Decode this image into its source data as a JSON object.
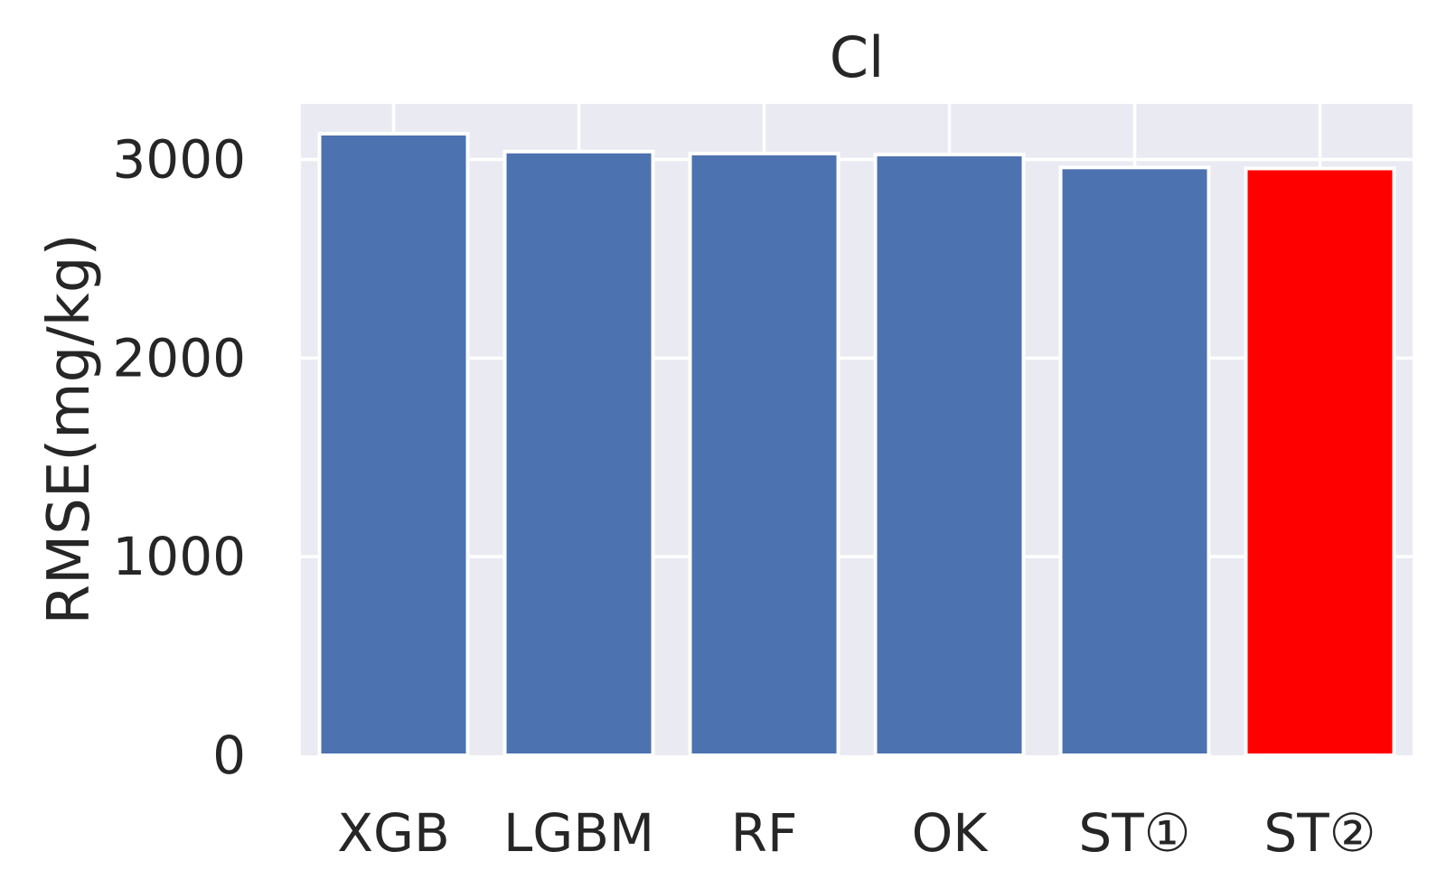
{
  "chart_data": {
    "type": "bar",
    "title": "Cl",
    "xlabel": "",
    "ylabel": "RMSE(mg/kg)",
    "categories": [
      "XGB",
      "LGBM",
      "RF",
      "OK",
      "ST①",
      "ST②"
    ],
    "values": [
      3130,
      3040,
      3030,
      3025,
      2960,
      2955
    ],
    "bar_colors": [
      "#4c72b0",
      "#4c72b0",
      "#4c72b0",
      "#4c72b0",
      "#4c72b0",
      "#ff0000"
    ],
    "ylim": [
      0,
      3280
    ],
    "yticks": [
      0,
      1000,
      2000,
      3000
    ],
    "ytick_labels": [
      "0",
      "1000",
      "2000",
      "3000"
    ],
    "grid": true,
    "background": "#eaeaf2"
  }
}
